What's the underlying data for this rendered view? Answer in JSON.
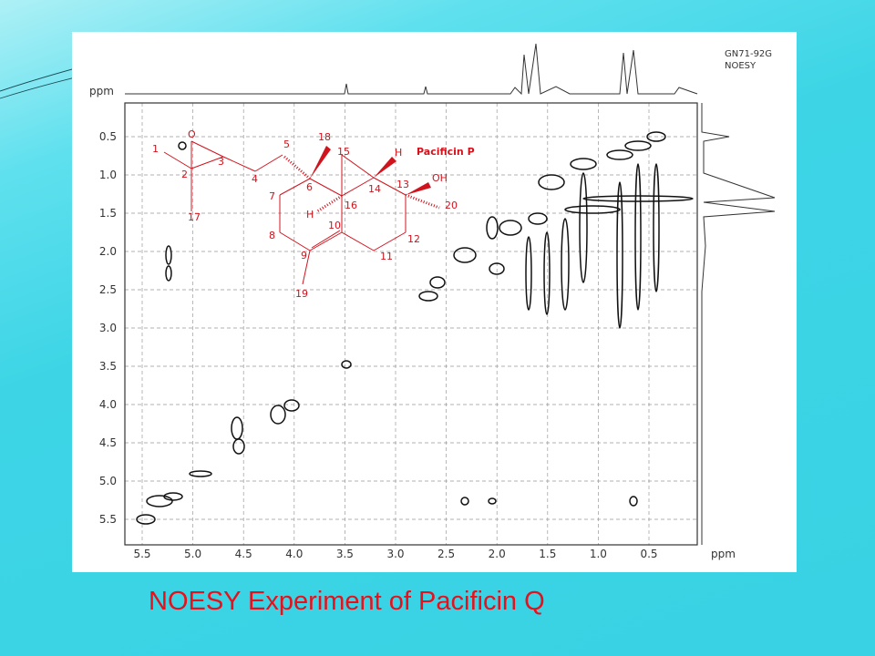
{
  "slide": {
    "caption": "NOESY Experiment of Pacificin Q"
  },
  "spectrum": {
    "sample": "GN71-92G",
    "experiment": "NOESY",
    "x_unit": "ppm",
    "y_unit": "ppm",
    "x_ticks": [
      "5.5",
      "5.0",
      "4.5",
      "4.0",
      "3.5",
      "3.0",
      "2.5",
      "2.0",
      "1.5",
      "1.0",
      "0.5"
    ],
    "y_ticks": [
      "0.5",
      "1.0",
      "1.5",
      "2.0",
      "2.5",
      "3.0",
      "3.5",
      "4.0",
      "4.5",
      "5.0",
      "5.5"
    ]
  },
  "structure": {
    "name": "Pacificin P",
    "labels": [
      "O",
      "1",
      "2",
      "3",
      "4",
      "5",
      "18",
      "15",
      "H",
      "6",
      "7",
      "14",
      "13",
      "OH",
      "16",
      "H",
      "20",
      "10",
      "17",
      "8",
      "12",
      "9",
      "11",
      "19"
    ]
  }
}
